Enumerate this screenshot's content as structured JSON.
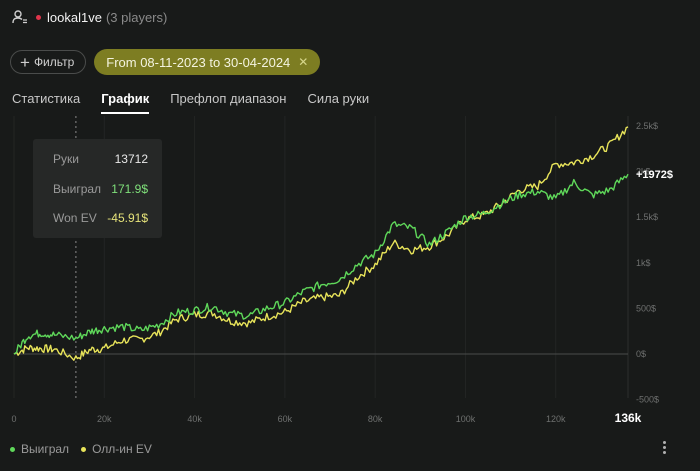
{
  "header": {
    "player_name": "lookal1ve",
    "players_count": "(3 players)"
  },
  "filters": {
    "filter_label": "Фильтр",
    "date_range": "From 08-11-2023 to 30-04-2024"
  },
  "tabs": [
    {
      "label": "Статистика",
      "active": false
    },
    {
      "label": "График",
      "active": true
    },
    {
      "label": "Префлоп диапазон",
      "active": false
    },
    {
      "label": "Сила руки",
      "active": false
    }
  ],
  "tooltip": {
    "hands_label": "Руки",
    "hands_value": "13712",
    "won_label": "Выиграл",
    "won_value": "171.9$",
    "ev_label": "Won EV",
    "ev_value": "-45.91$"
  },
  "end_label": "+1972$",
  "legend": {
    "won": "Выиграл",
    "ev": "Олл-ин EV"
  },
  "colors": {
    "won": "#5fd85a",
    "ev": "#e8e45a",
    "chip": "#7d7d22"
  },
  "chart_data": {
    "type": "line",
    "x_tick_labels": [
      "0",
      "20k",
      "40k",
      "60k",
      "80k",
      "100k",
      "120k",
      "136k"
    ],
    "y_tick_labels": [
      "-500$",
      "0$",
      "500$",
      "1k$",
      "1.5k$",
      "2k$",
      "2.5k$"
    ],
    "xlim": [
      0,
      136000
    ],
    "ylim": [
      -500,
      2500
    ],
    "x": [
      0,
      3000,
      6000,
      9000,
      13712,
      17000,
      20000,
      24000,
      28000,
      32000,
      36000,
      40000,
      44000,
      48000,
      52000,
      56000,
      60000,
      64000,
      68000,
      72000,
      76000,
      80000,
      84000,
      88000,
      92000,
      96000,
      100000,
      104000,
      108000,
      112000,
      116000,
      120000,
      124000,
      128000,
      132000,
      136000
    ],
    "series": [
      {
        "name": "Выиграл",
        "values": [
          0,
          200,
          230,
          210,
          171.9,
          250,
          280,
          300,
          260,
          320,
          450,
          480,
          520,
          440,
          420,
          500,
          560,
          680,
          760,
          820,
          980,
          1100,
          1420,
          1380,
          1200,
          1340,
          1500,
          1540,
          1650,
          1750,
          1780,
          1700,
          1880,
          1740,
          1800,
          1972
        ]
      },
      {
        "name": "Олл-ин EV",
        "values": [
          0,
          70,
          60,
          50,
          -45.91,
          50,
          60,
          150,
          160,
          230,
          380,
          430,
          450,
          360,
          340,
          410,
          460,
          570,
          620,
          640,
          840,
          980,
          1220,
          1140,
          1180,
          1300,
          1480,
          1520,
          1650,
          1800,
          1840,
          2080,
          2100,
          2170,
          2290,
          2490
        ]
      }
    ]
  }
}
